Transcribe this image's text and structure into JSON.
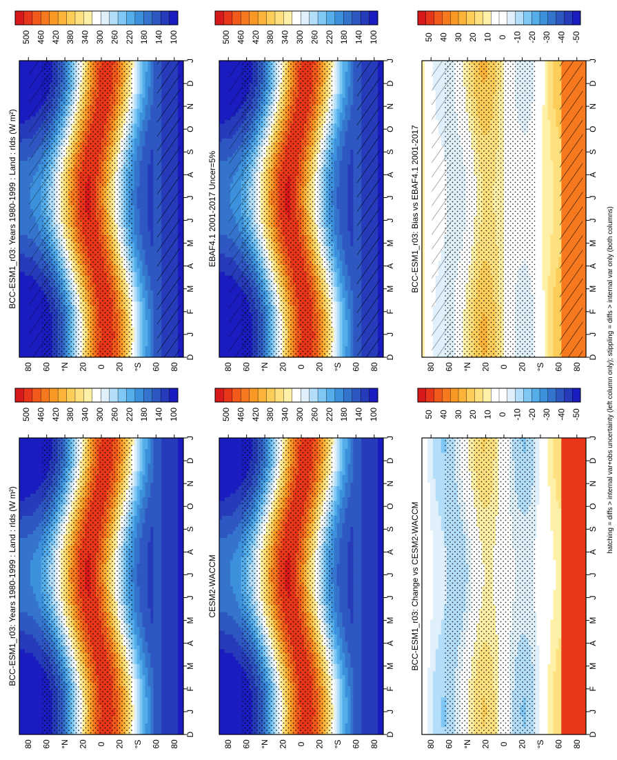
{
  "footnote": "hatching = diffs > internal var+obs uncertainty (left column only); stippling = diffs > internal var only (both columns)",
  "colors": {
    "abs_scale": [
      "#d7191c",
      "#e8361a",
      "#f25a1c",
      "#f7791f",
      "#fa9826",
      "#fbb33a",
      "#fdcd5a",
      "#fee07e",
      "#fff0a8",
      "#ffffff",
      "#dff0fb",
      "#b3defa",
      "#7fc7f5",
      "#55ade9",
      "#3d91dc",
      "#3474cc",
      "#2e57c2",
      "#263bba",
      "#1a1cc0"
    ],
    "diff_scale": [
      "#d7191c",
      "#e8361a",
      "#f25a1c",
      "#f7791f",
      "#fa9826",
      "#fbb33a",
      "#fdcd5a",
      "#fee07e",
      "#fff0a8",
      "#ffffff",
      "#ffffff",
      "#dff0fb",
      "#b3defa",
      "#7fc7f5",
      "#55ade9",
      "#3d91dc",
      "#3474cc",
      "#2e57c2",
      "#263bba",
      "#1a1cc0"
    ]
  },
  "chart_data": [
    {
      "id": "p1",
      "type": "heatmap",
      "title": "BCC-ESM1_r03: Years 1980-1999 : Land : rlds (W m²)",
      "x_ticks": [
        "D",
        "J",
        "F",
        "M",
        "A",
        "M",
        "J",
        "J",
        "A",
        "S",
        "O",
        "N",
        "D",
        "J"
      ],
      "y_ticks": [
        "80",
        "60",
        "°N",
        "20",
        "0",
        "20",
        "°S",
        "60",
        "80"
      ],
      "ylim": [
        -90,
        90
      ],
      "colorbar_labels": [
        "500",
        "460",
        "420",
        "380",
        "340",
        "300",
        "260",
        "220",
        "180",
        "140",
        "100"
      ],
      "scale": "abs",
      "hatching": true
    },
    {
      "id": "p2",
      "type": "heatmap",
      "title": "BCC-ESM1_r03: Years 1980-1999 : Land : rlds (W m²)",
      "x_ticks": [
        "D",
        "J",
        "F",
        "M",
        "A",
        "M",
        "J",
        "J",
        "A",
        "S",
        "O",
        "N",
        "D",
        "J"
      ],
      "y_ticks": [
        "80",
        "60",
        "°N",
        "20",
        "0",
        "20",
        "°S",
        "60",
        "80"
      ],
      "ylim": [
        -90,
        90
      ],
      "colorbar_labels": [
        "500",
        "460",
        "420",
        "380",
        "340",
        "300",
        "260",
        "220",
        "180",
        "140",
        "100"
      ],
      "scale": "abs",
      "hatching": false
    },
    {
      "id": "p3",
      "type": "heatmap",
      "title": "EBAF4.1 2001-2017 Uncer=5%",
      "x_ticks": [
        "D",
        "J",
        "F",
        "M",
        "A",
        "M",
        "J",
        "J",
        "A",
        "S",
        "O",
        "N",
        "D",
        "J"
      ],
      "y_ticks": [
        "80",
        "60",
        "°N",
        "20",
        "0",
        "20",
        "°S",
        "60",
        "80"
      ],
      "ylim": [
        -90,
        90
      ],
      "colorbar_labels": [
        "500",
        "460",
        "420",
        "380",
        "340",
        "300",
        "260",
        "220",
        "180",
        "140",
        "100"
      ],
      "scale": "abs",
      "hatching": true
    },
    {
      "id": "p4",
      "type": "heatmap",
      "title": "CESM2-WACCM",
      "x_ticks": [
        "D",
        "J",
        "F",
        "M",
        "A",
        "M",
        "J",
        "J",
        "A",
        "S",
        "O",
        "N",
        "D",
        "J"
      ],
      "y_ticks": [
        "80",
        "60",
        "°N",
        "20",
        "0",
        "20",
        "°S",
        "60",
        "80"
      ],
      "ylim": [
        -90,
        90
      ],
      "colorbar_labels": [
        "500",
        "460",
        "420",
        "380",
        "340",
        "300",
        "260",
        "220",
        "180",
        "140",
        "100"
      ],
      "scale": "abs",
      "hatching": false
    },
    {
      "id": "p5",
      "type": "heatmap",
      "title": "BCC-ESM1_r03: Bias vs EBAF4.1 2001-2017",
      "x_ticks": [
        "D",
        "J",
        "F",
        "M",
        "A",
        "M",
        "J",
        "J",
        "A",
        "S",
        "O",
        "N",
        "D",
        "J"
      ],
      "y_ticks": [
        "80",
        "60",
        "°N",
        "20",
        "0",
        "20",
        "°S",
        "60",
        "80"
      ],
      "ylim": [
        -90,
        90
      ],
      "colorbar_labels": [
        "50",
        "40",
        "30",
        "20",
        "10",
        "0",
        "-10",
        "-20",
        "-30",
        "-40",
        "-50"
      ],
      "scale": "diff",
      "hatching": true
    },
    {
      "id": "p6",
      "type": "heatmap",
      "title": "BCC-ESM1_r03: Change vs CESM2-WACCM",
      "x_ticks": [
        "D",
        "J",
        "F",
        "M",
        "A",
        "M",
        "J",
        "J",
        "A",
        "S",
        "O",
        "N",
        "D",
        "J"
      ],
      "y_ticks": [
        "80",
        "60",
        "°N",
        "20",
        "0",
        "20",
        "°S",
        "60",
        "80"
      ],
      "ylim": [
        -90,
        90
      ],
      "colorbar_labels": [
        "50",
        "40",
        "30",
        "20",
        "10",
        "0",
        "-10",
        "-20",
        "-30",
        "-40",
        "-50"
      ],
      "scale": "diff",
      "hatching": false
    }
  ]
}
